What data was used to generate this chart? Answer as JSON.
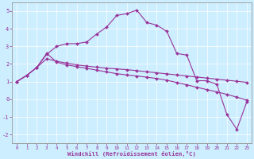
{
  "title": "",
  "xlabel": "Windchill (Refroidissement éolien,°C)",
  "background_color": "#cceeff",
  "line_color": "#993399",
  "grid_color": "#aaddcc",
  "xlim": [
    -0.5,
    23.5
  ],
  "ylim": [
    -2.5,
    5.5
  ],
  "yticks": [
    -2,
    -1,
    0,
    1,
    2,
    3,
    4,
    5
  ],
  "xticks": [
    0,
    1,
    2,
    3,
    4,
    5,
    6,
    7,
    8,
    9,
    10,
    11,
    12,
    13,
    14,
    15,
    16,
    17,
    18,
    19,
    20,
    21,
    22,
    23
  ],
  "line1_x": [
    0,
    1,
    2,
    3,
    4,
    5,
    6,
    7,
    8,
    9,
    10,
    11,
    12,
    13,
    14,
    15,
    16,
    17,
    18,
    19,
    20,
    21,
    22,
    23
  ],
  "line1_y": [
    1.0,
    1.35,
    1.8,
    2.55,
    3.0,
    3.15,
    3.15,
    3.25,
    3.7,
    4.1,
    4.75,
    4.85,
    5.05,
    4.35,
    4.2,
    3.85,
    2.6,
    2.5,
    1.05,
    1.05,
    0.85,
    -0.85,
    -1.7,
    -0.15
  ],
  "line2_x": [
    0,
    1,
    2,
    3,
    4,
    5,
    6,
    7,
    8,
    9,
    10,
    11,
    12,
    13,
    14,
    15,
    16,
    17,
    18,
    19,
    20,
    21,
    22,
    23
  ],
  "line2_y": [
    1.0,
    1.35,
    1.8,
    2.6,
    2.1,
    1.95,
    1.85,
    1.75,
    1.65,
    1.55,
    1.45,
    1.38,
    1.32,
    1.25,
    1.18,
    1.08,
    0.95,
    0.82,
    0.68,
    0.55,
    0.42,
    0.28,
    0.12,
    -0.05
  ],
  "line3_x": [
    0,
    1,
    2,
    3,
    4,
    5,
    6,
    7,
    8,
    9,
    10,
    11,
    12,
    13,
    14,
    15,
    16,
    17,
    18,
    19,
    20,
    21,
    22,
    23
  ],
  "line3_y": [
    1.0,
    1.35,
    1.8,
    2.3,
    2.15,
    2.05,
    1.95,
    1.88,
    1.82,
    1.76,
    1.72,
    1.68,
    1.62,
    1.56,
    1.5,
    1.44,
    1.38,
    1.32,
    1.26,
    1.2,
    1.14,
    1.08,
    1.02,
    0.96
  ]
}
